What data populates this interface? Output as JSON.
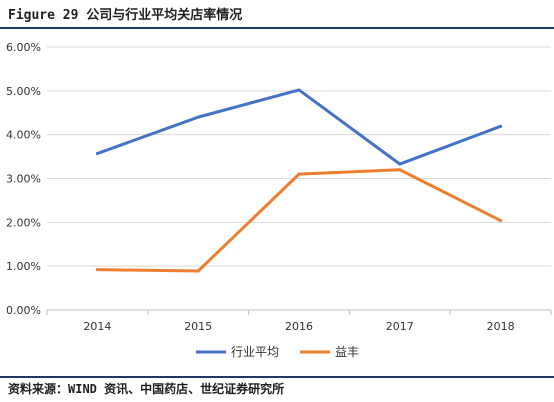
{
  "figure_title": "Figure 29 公司与行业平均关店率情况",
  "source_note": "资料来源：WIND 资讯、中国药店、世纪证券研究所",
  "chart_data": {
    "type": "line",
    "title": "",
    "xlabel": "",
    "ylabel": "",
    "categories": [
      "2014",
      "2015",
      "2016",
      "2017",
      "2018"
    ],
    "ylim": [
      0,
      6
    ],
    "yticks": [
      "0.00%",
      "1.00%",
      "2.00%",
      "3.00%",
      "4.00%",
      "5.00%",
      "6.00%"
    ],
    "y_unit": "%",
    "grid": "horizontal",
    "legend_position": "bottom",
    "series": [
      {
        "name": "行业平均",
        "color": "#4472c4",
        "values": [
          3.57,
          4.4,
          5.02,
          3.33,
          4.19
        ]
      },
      {
        "name": "益丰",
        "color": "#ed7d31",
        "values": [
          0.92,
          0.89,
          3.1,
          3.2,
          2.04
        ]
      }
    ]
  }
}
